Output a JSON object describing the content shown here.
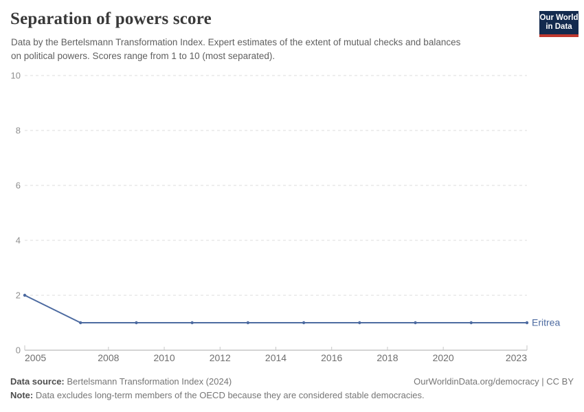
{
  "header": {
    "title": "Separation of powers score",
    "subtitle_lines": [
      "Data by the Bertelsmann Transformation Index. Expert estimates of the extent of mutual checks and balances",
      "on political powers. Scores range from 1 to 10 (most separated)."
    ],
    "logo": {
      "line1": "Our World",
      "line2": "in Data",
      "bg_color": "#132a4e",
      "accent_color": "#c0392f"
    }
  },
  "chart_data": {
    "type": "line",
    "title": "Separation of powers score",
    "x": [
      2005,
      2007,
      2009,
      2011,
      2013,
      2015,
      2017,
      2019,
      2021,
      2023
    ],
    "series": [
      {
        "name": "Eritrea",
        "color": "#4c6aa0",
        "values": [
          2,
          1,
          1,
          1,
          1,
          1,
          1,
          1,
          1,
          1
        ]
      }
    ],
    "xlabel": "",
    "ylabel": "",
    "xlim": [
      2005,
      2023
    ],
    "ylim": [
      0,
      10
    ],
    "xticks": [
      2005,
      2008,
      2010,
      2012,
      2014,
      2016,
      2018,
      2020,
      2023
    ],
    "yticks": [
      0,
      2,
      4,
      6,
      8,
      10
    ],
    "grid": "horizontal-dashed",
    "legend_position": "inline-end-of-line"
  },
  "footer": {
    "source_label": "Data source:",
    "source_text": " Bertelsmann Transformation Index (2024)",
    "rights_text": "OurWorldinData.org/democracy | CC BY",
    "note_label": "Note:",
    "note_text": " Data excludes long-term members of the OECD because they are considered stable democracies."
  }
}
